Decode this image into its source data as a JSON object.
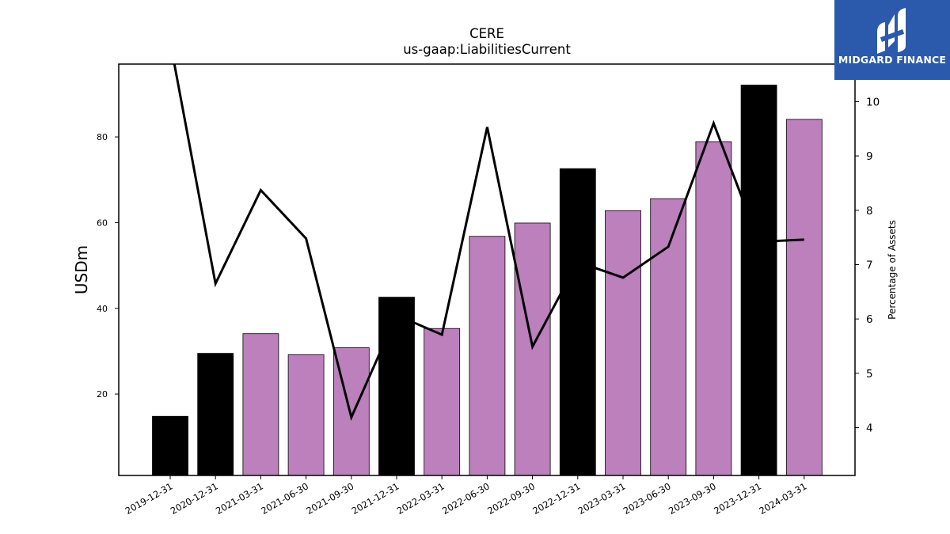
{
  "chart_data": {
    "type": "bar",
    "title": "CERE",
    "subtitle": "us-gaap:LiabilitiesCurrent",
    "ylabel": "USDm",
    "y2label": "Percentage of Assets",
    "categories": [
      "2019-12-31",
      "2020-12-31",
      "2021-03-31",
      "2021-06-30",
      "2021-09-30",
      "2021-12-31",
      "2022-03-31",
      "2022-06-30",
      "2022-09-30",
      "2022-12-31",
      "2023-03-31",
      "2023-06-30",
      "2023-09-30",
      "2023-12-31",
      "2024-03-31"
    ],
    "series": [
      {
        "values": [
          14.8,
          29.5,
          34.1,
          29.2,
          30.8,
          42.6,
          35.3,
          56.8,
          59.9,
          72.6,
          62.8,
          65.6,
          78.9,
          92.1,
          84.1
        ],
        "colors": [
          "#000000",
          "#000000",
          "#bc80bd",
          "#bc80bd",
          "#bc80bd",
          "#000000",
          "#bc80bd",
          "#bc80bd",
          "#bc80bd",
          "#000000",
          "#bc80bd",
          "#bc80bd",
          "#bc80bd",
          "#000000",
          "#bc80bd"
        ]
      },
      {
        "type": "line",
        "axis": "right",
        "color": "#000000",
        "values": [
          11.1,
          6.65,
          8.37,
          7.48,
          4.19,
          6.07,
          5.71,
          9.53,
          5.49,
          7.05,
          6.76,
          7.33,
          9.6,
          7.42,
          7.46
        ]
      }
    ],
    "ylim": [
      1,
      97
    ],
    "y2lim": [
      3.12,
      10.69
    ],
    "yticks": [
      20,
      40,
      60,
      80
    ],
    "y2ticks": [
      4,
      5,
      6,
      7,
      8,
      9,
      10
    ],
    "grid": false
  },
  "logo": {
    "text": "MIDGARD FINANCE"
  }
}
